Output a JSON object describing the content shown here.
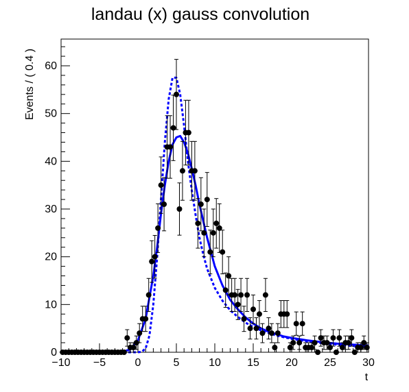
{
  "chart_data": {
    "type": "scatter",
    "title": "landau (x) gauss convolution",
    "xlabel": "t",
    "ylabel": "Events / ( 0.4 )",
    "xlim": [
      -10,
      30
    ],
    "ylim": [
      0,
      65.6
    ],
    "x_ticks": [
      -10,
      -5,
      0,
      5,
      10,
      15,
      20,
      25,
      30
    ],
    "y_ticks": [
      0,
      10,
      20,
      30,
      40,
      50,
      60
    ],
    "grid": false,
    "legend": "none",
    "colors": {
      "points": "#000000",
      "curves": "#0000ff",
      "frame": "#000000"
    },
    "points": {
      "x": [
        -9.8,
        -9.4,
        -9.0,
        -8.6,
        -8.2,
        -7.8,
        -7.4,
        -7.0,
        -6.6,
        -6.2,
        -5.8,
        -5.4,
        -5.0,
        -4.6,
        -4.2,
        -3.8,
        -3.4,
        -3.0,
        -2.6,
        -2.2,
        -1.8,
        -1.4,
        -1.0,
        -0.6,
        -0.2,
        0.2,
        0.6,
        1.0,
        1.4,
        1.8,
        2.2,
        2.6,
        3.0,
        3.4,
        3.8,
        4.2,
        4.6,
        5.0,
        5.4,
        5.8,
        6.2,
        6.6,
        7.0,
        7.4,
        7.8,
        8.2,
        8.6,
        9.0,
        9.4,
        9.8,
        10.2,
        10.6,
        11.0,
        11.4,
        11.8,
        12.2,
        12.6,
        13.0,
        13.4,
        13.8,
        14.2,
        14.6,
        15.0,
        15.4,
        15.8,
        16.2,
        16.6,
        17.0,
        17.4,
        17.8,
        18.2,
        18.6,
        19.0,
        19.4,
        19.8,
        20.2,
        20.6,
        21.0,
        21.4,
        21.8,
        22.2,
        22.6,
        23.0,
        23.4,
        23.8,
        24.2,
        24.6,
        25.0,
        25.4,
        25.8,
        26.2,
        26.6,
        27.0,
        27.4,
        27.8,
        28.2,
        28.6,
        29.0,
        29.4,
        29.8
      ],
      "y": [
        0,
        0,
        0,
        0,
        0,
        0,
        0,
        0,
        0,
        0,
        0,
        0,
        0,
        0,
        0,
        0,
        0,
        0,
        0,
        0,
        0,
        3,
        1,
        1,
        2,
        4,
        7,
        7,
        12,
        19,
        20,
        26,
        35,
        31,
        43,
        43,
        47,
        54,
        30,
        38,
        46,
        46,
        38,
        38,
        27,
        31,
        25,
        32,
        21,
        25,
        27,
        26,
        21,
        13,
        16,
        12,
        12,
        10,
        12,
        7,
        12,
        5,
        9,
        5,
        8,
        4,
        12,
        5,
        4,
        1,
        4,
        8,
        8,
        8,
        1,
        2,
        6,
        2,
        6,
        1,
        1,
        1,
        2,
        0,
        3,
        2,
        2,
        1,
        3,
        0,
        3,
        1,
        2,
        2,
        3,
        0,
        1,
        1,
        2,
        1
      ]
    },
    "curve_convolved": {
      "x": [
        -10,
        -3,
        -2,
        -1,
        0,
        1,
        2,
        2.5,
        3,
        3.5,
        4,
        4.5,
        5,
        5.5,
        6,
        6.5,
        7,
        7.5,
        8,
        8.5,
        9,
        10,
        11,
        12,
        13,
        14,
        15,
        16,
        17,
        18,
        19,
        20,
        22,
        24,
        26,
        28,
        30
      ],
      "y": [
        0,
        0,
        0.1,
        0.6,
        2.5,
        7,
        16,
        22,
        29,
        35,
        40,
        43.5,
        45,
        45.3,
        44,
        41.7,
        38.5,
        35,
        31,
        27.5,
        24,
        18,
        14,
        11,
        9,
        7.3,
        6,
        5,
        4.3,
        3.8,
        3.3,
        3,
        2.5,
        2.1,
        1.8,
        1.6,
        1.4
      ]
    },
    "curve_landau": {
      "x": [
        -10,
        0,
        0.5,
        1,
        1.5,
        2,
        2.5,
        3,
        3.5,
        4,
        4.5,
        5,
        5.5,
        6,
        6.5,
        7,
        7.5,
        8,
        8.5,
        9,
        10,
        11,
        12,
        13,
        14,
        15,
        16,
        18,
        20,
        22,
        24,
        26,
        28,
        30
      ],
      "y": [
        0,
        0,
        0.1,
        0.8,
        3.5,
        10,
        20,
        32,
        44,
        53,
        57.5,
        57.5,
        54,
        47.5,
        40,
        34,
        28.8,
        24,
        20.5,
        17.5,
        13.5,
        10.8,
        8.8,
        7.4,
        6.2,
        5.3,
        4.6,
        3.5,
        2.8,
        2.3,
        1.9,
        1.6,
        1.3,
        1.1
      ]
    }
  }
}
